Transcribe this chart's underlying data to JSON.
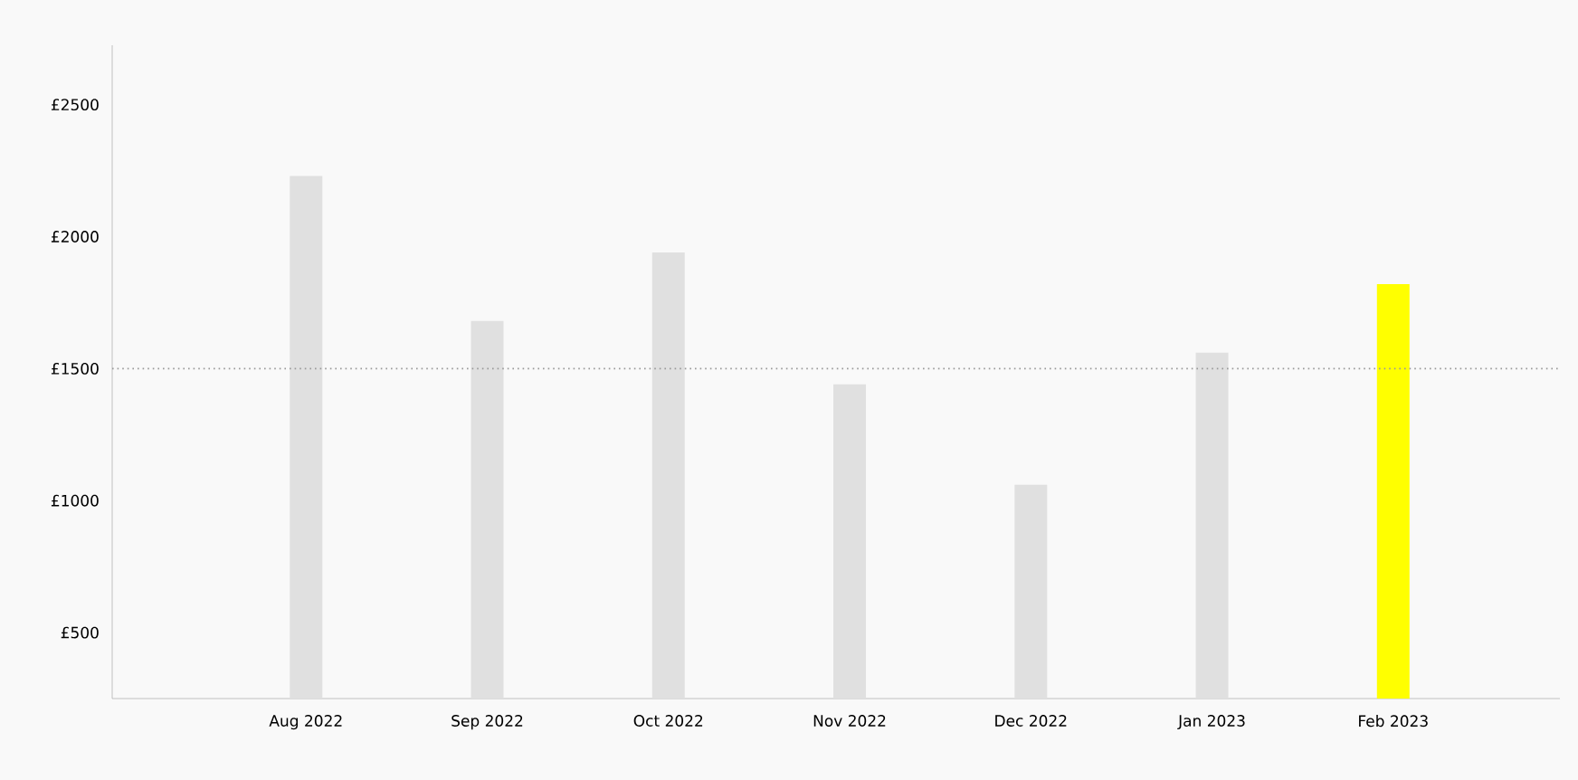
{
  "chart_data": {
    "type": "bar",
    "categories": [
      "Aug 2022",
      "Sep 2022",
      "Oct 2022",
      "Nov 2022",
      "Dec 2022",
      "Jan 2023",
      "Feb 2023"
    ],
    "values": [
      2230,
      1680,
      1940,
      1440,
      1060,
      1560,
      1820
    ],
    "colors": [
      "#e0e0e0",
      "#e0e0e0",
      "#e0e0e0",
      "#e0e0e0",
      "#e0e0e0",
      "#e0e0e0",
      "#ffff00"
    ],
    "ylim": [
      250,
      2725
    ],
    "yticks": [
      {
        "value": 500,
        "label": "£500"
      },
      {
        "value": 1000,
        "label": "£1000"
      },
      {
        "value": 1500,
        "label": "£1500"
      },
      {
        "value": 2000,
        "label": "£2000"
      },
      {
        "value": 2500,
        "label": "£2500"
      }
    ],
    "ref_lines": [
      {
        "axis": "y",
        "value": 1500,
        "color": "#999999",
        "line_style": "dotted"
      }
    ],
    "grid": false
  }
}
